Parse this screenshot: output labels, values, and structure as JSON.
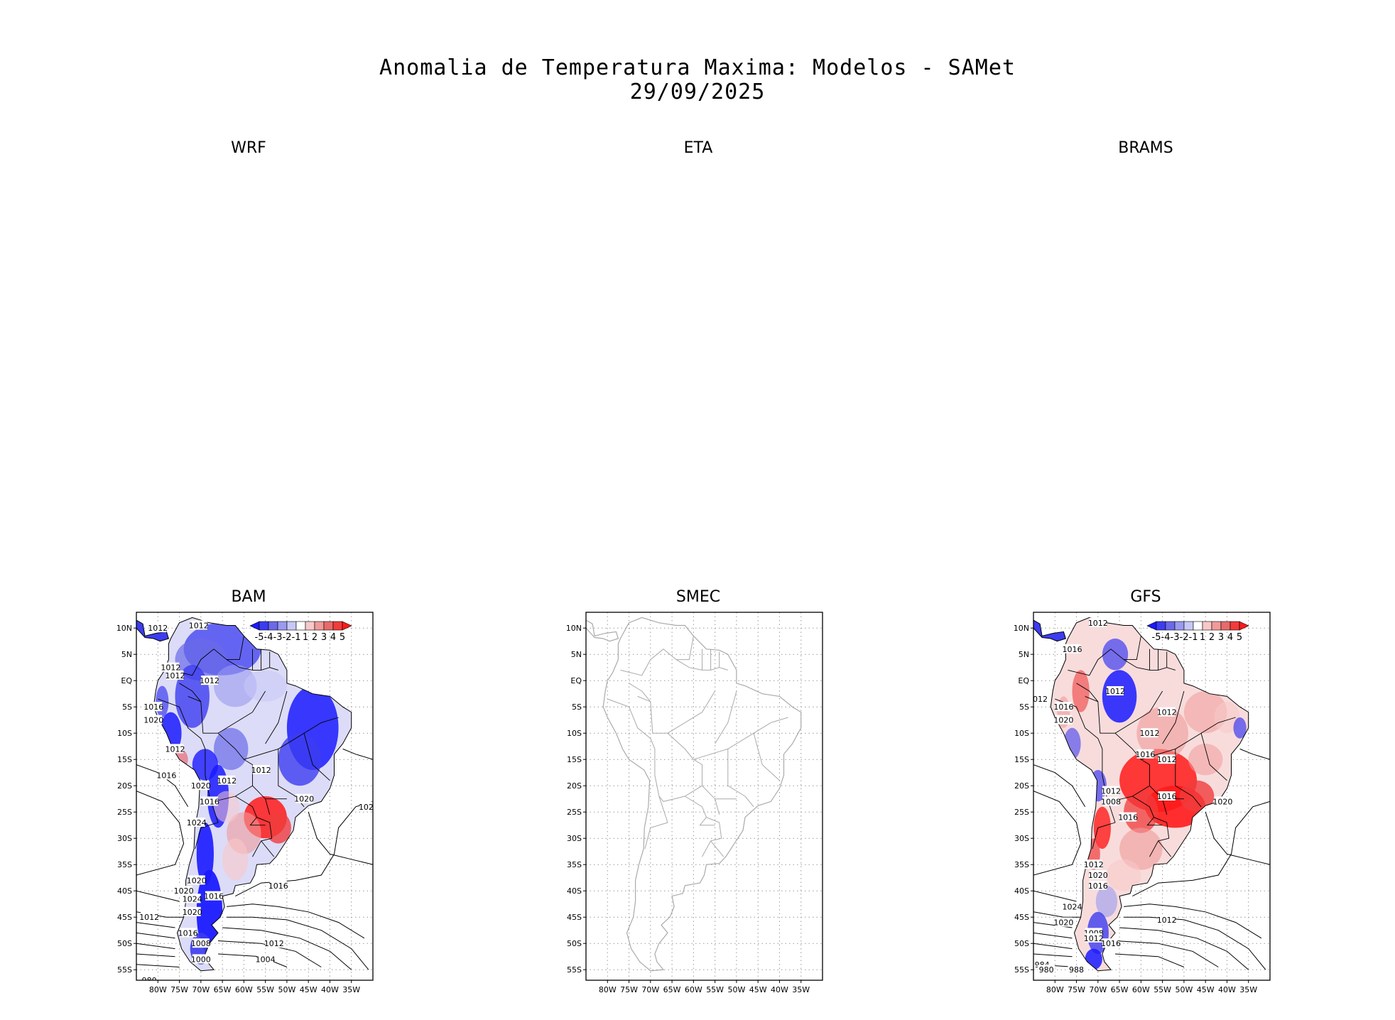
{
  "title": {
    "line1": "Anomalia de Temperatura Maxima: Modelos - SAMet",
    "line2": "29/09/2025"
  },
  "panels": [
    {
      "id": "wrf",
      "label": "WRF",
      "has_map": false
    },
    {
      "id": "eta",
      "label": "ETA",
      "has_map": false
    },
    {
      "id": "brams",
      "label": "BRAMS",
      "has_map": false
    },
    {
      "id": "bam",
      "label": "BAM",
      "has_map": true,
      "has_colorbar": true,
      "contour_labels": [
        "1012",
        "1012",
        "1012",
        "1012",
        "1012",
        "1016",
        "1020",
        "1012",
        "1016",
        "1012",
        "1012",
        "1020",
        "1016",
        "1024",
        "1020",
        "1020",
        "1024",
        "1020",
        "1016",
        "1012",
        "1008",
        "1000",
        "980",
        "1016",
        "1012",
        "1004",
        "1016",
        "1024",
        "1020"
      ]
    },
    {
      "id": "smec",
      "label": "SMEC",
      "has_map": true,
      "has_colorbar": false,
      "contour_labels": []
    },
    {
      "id": "gfs",
      "label": "GFS",
      "has_map": true,
      "has_colorbar": true,
      "contour_labels": [
        "1012",
        "1016",
        "1012",
        "1016",
        "1020",
        "1012",
        "1012",
        "1012",
        "1016",
        "1012",
        "1016",
        "1012",
        "1008",
        "1016",
        "1012",
        "1020",
        "1016",
        "1024",
        "1020",
        "1008",
        "1012",
        "1016",
        "984",
        "980",
        "988",
        "1020",
        "1012"
      ]
    }
  ],
  "axes": {
    "lat_labels": [
      "10N",
      "5N",
      "EQ",
      "5S",
      "10S",
      "15S",
      "20S",
      "25S",
      "30S",
      "35S",
      "40S",
      "45S",
      "50S",
      "55S"
    ],
    "lon_labels": [
      "80W",
      "75W",
      "70W",
      "65W",
      "60W",
      "55W",
      "50W",
      "45W",
      "40W",
      "35W"
    ]
  },
  "colorbar": {
    "labels": [
      "-5",
      "-4",
      "-3",
      "-2",
      "-1",
      "1",
      "2",
      "3",
      "4",
      "5"
    ],
    "colors": [
      "#1a1aff",
      "#3c3cf0",
      "#6a6ae8",
      "#9a9af0",
      "#c8c8f8",
      "#ffffff",
      "#f8c8c8",
      "#f09a9a",
      "#e86a6a",
      "#f03c3c",
      "#ff1a1a"
    ]
  },
  "colors": {
    "cold": "#1a1aff",
    "warm": "#ff1a1a",
    "coast_plain": "#aaaaaa",
    "grid": "#999999"
  }
}
